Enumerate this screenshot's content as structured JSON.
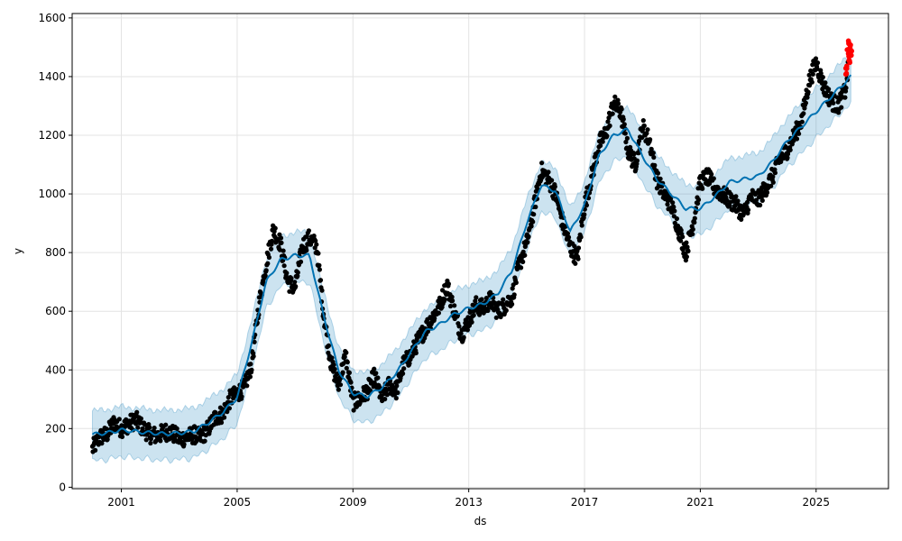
{
  "chart_data": {
    "type": "scatter",
    "title": "",
    "xlabel": "ds",
    "ylabel": "y",
    "xlim": [
      1999.3,
      2027.5
    ],
    "ylim": [
      -5,
      1615
    ],
    "x_ticks": [
      2001,
      2005,
      2009,
      2013,
      2017,
      2021,
      2025
    ],
    "x_tick_labels": [
      "2001",
      "2005",
      "2009",
      "2013",
      "2017",
      "2021",
      "2025"
    ],
    "y_ticks": [
      0,
      200,
      400,
      600,
      800,
      1000,
      1200,
      1400,
      1600
    ],
    "y_tick_labels": [
      "0",
      "200",
      "400",
      "600",
      "800",
      "1000",
      "1200",
      "1400",
      "1600"
    ],
    "grid": true,
    "colors": {
      "observed": "#000000",
      "forecast": "#0072b2",
      "band": "#0072b2",
      "holdout": "#ff0000"
    },
    "forecast_upper_offset": 80,
    "forecast_lower_offset": 90,
    "series": [
      {
        "kind": "forecast",
        "x": [
          2000.0,
          2000.5,
          2001.0,
          2001.5,
          2002.0,
          2002.5,
          2003.0,
          2003.5,
          2004.0,
          2004.5,
          2005.0,
          2005.5,
          2006.0,
          2006.5,
          2007.0,
          2007.5,
          2008.0,
          2008.5,
          2009.0,
          2009.5,
          2010.0,
          2010.5,
          2011.0,
          2011.5,
          2012.0,
          2012.5,
          2013.0,
          2013.5,
          2014.0,
          2014.5,
          2015.0,
          2015.5,
          2016.0,
          2016.5,
          2017.0,
          2017.5,
          2018.0,
          2018.5,
          2019.0,
          2019.5,
          2020.0,
          2020.5,
          2021.0,
          2021.5,
          2022.0,
          2022.5,
          2023.0,
          2023.5,
          2024.0,
          2024.5,
          2025.0,
          2025.5,
          2026.0,
          2026.2
        ],
        "y": [
          180,
          185,
          195,
          190,
          185,
          182,
          185,
          190,
          220,
          255,
          305,
          490,
          700,
          775,
          790,
          790,
          580,
          400,
          320,
          310,
          340,
          390,
          460,
          530,
          555,
          590,
          610,
          625,
          660,
          740,
          900,
          1030,
          1010,
          870,
          960,
          1130,
          1200,
          1220,
          1130,
          1050,
          1000,
          950,
          950,
          990,
          1040,
          1050,
          1060,
          1110,
          1180,
          1230,
          1280,
          1330,
          1380,
          1400
        ]
      },
      {
        "kind": "observed",
        "x": [
          2000.0,
          2000.25,
          2000.5,
          2000.75,
          2001.0,
          2001.25,
          2001.5,
          2001.75,
          2002.0,
          2002.25,
          2002.5,
          2002.75,
          2003.0,
          2003.25,
          2003.5,
          2003.75,
          2004.0,
          2004.25,
          2004.5,
          2004.75,
          2005.0,
          2005.25,
          2005.5,
          2005.75,
          2006.0,
          2006.25,
          2006.5,
          2006.75,
          2007.0,
          2007.25,
          2007.5,
          2007.75,
          2008.0,
          2008.25,
          2008.5,
          2008.75,
          2009.0,
          2009.25,
          2009.5,
          2009.75,
          2010.0,
          2010.25,
          2010.5,
          2010.75,
          2011.0,
          2011.25,
          2011.5,
          2011.75,
          2012.0,
          2012.25,
          2012.5,
          2012.75,
          2013.0,
          2013.25,
          2013.5,
          2013.75,
          2014.0,
          2014.25,
          2014.5,
          2014.75,
          2015.0,
          2015.25,
          2015.5,
          2015.75,
          2016.0,
          2016.25,
          2016.5,
          2016.75,
          2017.0,
          2017.25,
          2017.5,
          2017.75,
          2018.0,
          2018.25,
          2018.5,
          2018.75,
          2019.0,
          2019.25,
          2019.5,
          2019.75,
          2020.0,
          2020.25,
          2020.5,
          2020.75,
          2021.0,
          2021.25,
          2021.5,
          2021.75,
          2022.0,
          2022.25,
          2022.5,
          2022.75,
          2023.0,
          2023.25,
          2023.5,
          2023.75,
          2024.0,
          2024.25,
          2024.5,
          2024.75,
          2025.0,
          2025.25,
          2025.5,
          2025.75,
          2026.0,
          2026.1
        ],
        "y": [
          130,
          170,
          180,
          220,
          200,
          215,
          230,
          200,
          180,
          175,
          190,
          185,
          165,
          170,
          180,
          170,
          200,
          240,
          250,
          300,
          320,
          340,
          420,
          620,
          760,
          880,
          830,
          700,
          680,
          820,
          850,
          820,
          580,
          420,
          350,
          450,
          290,
          300,
          330,
          380,
          300,
          350,
          330,
          420,
          450,
          500,
          540,
          580,
          620,
          690,
          600,
          520,
          570,
          620,
          610,
          640,
          600,
          620,
          650,
          760,
          830,
          950,
          1080,
          1050,
          1000,
          900,
          820,
          780,
          960,
          1060,
          1170,
          1210,
          1310,
          1280,
          1150,
          1100,
          1230,
          1180,
          1050,
          1000,
          960,
          880,
          800,
          900,
          1040,
          1060,
          1020,
          1000,
          980,
          960,
          930,
          990,
          980,
          1020,
          1060,
          1120,
          1150,
          1200,
          1250,
          1380,
          1450,
          1370,
          1320,
          1300,
          1350,
          1420
        ]
      },
      {
        "kind": "holdout",
        "x": [
          2026.05,
          2026.1,
          2026.15,
          2026.2
        ],
        "y": [
          1420,
          1500,
          1470,
          1490
        ]
      }
    ]
  }
}
